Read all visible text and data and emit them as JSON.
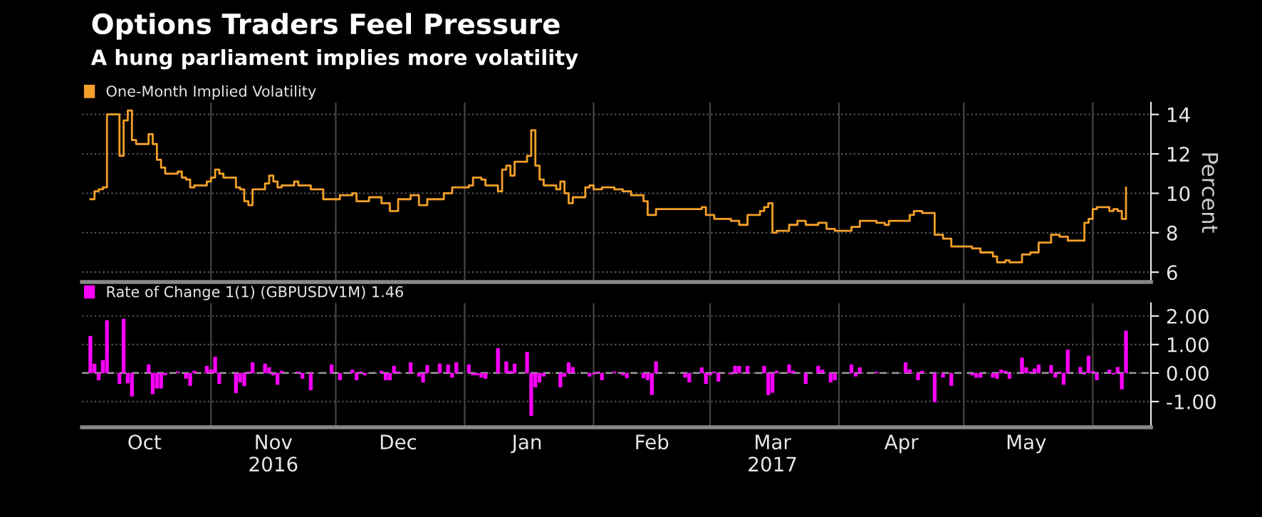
{
  "chart_data": [
    {
      "type": "step",
      "title": "Options Traders Feel Pressure",
      "subtitle": "A hung parliament implies more volatility",
      "ylabel": "Percent",
      "x": [
        "2016-10-03",
        "2016-10-04",
        "2016-10-05",
        "2016-10-06",
        "2016-10-07",
        "2016-10-10",
        "2016-10-11",
        "2016-10-12",
        "2016-10-13",
        "2016-10-14",
        "2016-10-17",
        "2016-10-18",
        "2016-10-19",
        "2016-10-20",
        "2016-10-21",
        "2016-10-24",
        "2016-10-25",
        "2016-10-26",
        "2016-10-27",
        "2016-10-28",
        "2016-10-31",
        "2016-11-01",
        "2016-11-02",
        "2016-11-03",
        "2016-11-04",
        "2016-11-07",
        "2016-11-08",
        "2016-11-09",
        "2016-11-10",
        "2016-11-11",
        "2016-11-14",
        "2016-11-15",
        "2016-11-16",
        "2016-11-17",
        "2016-11-18",
        "2016-11-21",
        "2016-11-22",
        "2016-11-23",
        "2016-11-25",
        "2016-11-28",
        "2016-11-30",
        "2016-12-02",
        "2016-12-05",
        "2016-12-06",
        "2016-12-08",
        "2016-12-09",
        "2016-12-12",
        "2016-12-14",
        "2016-12-16",
        "2016-12-19",
        "2016-12-21",
        "2016-12-23",
        "2016-12-27",
        "2016-12-29",
        "2017-01-02",
        "2017-01-03",
        "2017-01-05",
        "2017-01-06",
        "2017-01-09",
        "2017-01-10",
        "2017-01-11",
        "2017-01-12",
        "2017-01-13",
        "2017-01-16",
        "2017-01-17",
        "2017-01-18",
        "2017-01-19",
        "2017-01-20",
        "2017-01-23",
        "2017-01-24",
        "2017-01-25",
        "2017-01-26",
        "2017-01-27",
        "2017-01-30",
        "2017-01-31",
        "2017-02-01",
        "2017-02-03",
        "2017-02-06",
        "2017-02-08",
        "2017-02-10",
        "2017-02-13",
        "2017-02-14",
        "2017-02-16",
        "2017-02-21",
        "2017-02-24",
        "2017-02-27",
        "2017-02-28",
        "2017-03-02",
        "2017-03-06",
        "2017-03-08",
        "2017-03-10",
        "2017-03-13",
        "2017-03-14",
        "2017-03-15",
        "2017-03-16",
        "2017-03-17",
        "2017-03-20",
        "2017-03-22",
        "2017-03-24",
        "2017-03-27",
        "2017-03-29",
        "2017-03-31",
        "2017-04-04",
        "2017-04-06",
        "2017-04-10",
        "2017-04-12",
        "2017-04-13",
        "2017-04-18",
        "2017-04-19",
        "2017-04-21",
        "2017-04-24",
        "2017-04-26",
        "2017-04-28",
        "2017-05-03",
        "2017-05-05",
        "2017-05-08",
        "2017-05-09",
        "2017-05-11",
        "2017-05-12",
        "2017-05-15",
        "2017-05-17",
        "2017-05-19",
        "2017-05-22",
        "2017-05-24",
        "2017-05-26",
        "2017-05-30",
        "2017-05-31",
        "2017-06-01",
        "2017-06-02",
        "2017-06-05",
        "2017-06-06",
        "2017-06-07",
        "2017-06-08",
        "2017-06-09"
      ],
      "series": [
        {
          "name": "One-Month Implied Volatility",
          "color": "#f5a02a",
          "values": [
            9.7,
            10.1,
            10.2,
            10.3,
            14.0,
            11.9,
            13.7,
            14.2,
            12.7,
            12.5,
            13.0,
            12.5,
            11.7,
            11.3,
            11.0,
            11.1,
            10.8,
            10.7,
            10.3,
            10.4,
            10.6,
            10.8,
            11.2,
            11.0,
            10.8,
            10.3,
            10.2,
            9.6,
            9.4,
            10.2,
            10.5,
            10.9,
            10.6,
            10.3,
            10.4,
            10.6,
            10.4,
            10.4,
            10.2,
            9.7,
            9.7,
            9.9,
            10.0,
            9.6,
            9.6,
            9.8,
            9.5,
            9.1,
            9.7,
            9.9,
            9.4,
            9.7,
            10.0,
            10.3,
            10.4,
            10.8,
            10.7,
            10.4,
            10.1,
            11.2,
            11.4,
            10.9,
            11.6,
            11.9,
            13.2,
            11.4,
            10.7,
            10.4,
            10.2,
            10.6,
            10.0,
            9.5,
            9.8,
            10.3,
            10.4,
            10.2,
            10.3,
            10.2,
            10.1,
            9.9,
            9.6,
            8.9,
            9.2,
            9.2,
            9.2,
            9.3,
            8.9,
            8.7,
            8.6,
            8.4,
            8.9,
            9.1,
            9.3,
            9.5,
            8.0,
            8.1,
            8.4,
            8.6,
            8.4,
            8.5,
            8.2,
            8.1,
            8.3,
            8.6,
            8.5,
            8.4,
            8.6,
            8.9,
            9.1,
            9.0,
            7.9,
            7.7,
            7.3,
            7.2,
            7.0,
            6.8,
            6.5,
            6.6,
            6.5,
            6.9,
            7.0,
            7.5,
            7.9,
            7.8,
            7.6,
            8.5,
            8.7,
            9.2,
            9.3,
            9.1,
            9.2,
            9.1,
            8.7,
            10.3
          ]
        }
      ],
      "xlim": [
        "2016-10-01",
        "2017-06-15"
      ],
      "xticks": [
        {
          "value": "2016-11-01",
          "label": null
        },
        {
          "value": "2016-12-01",
          "label": null
        },
        {
          "value": "2017-01-01",
          "label": null
        },
        {
          "value": "2017-02-01",
          "label": null
        },
        {
          "value": "2017-03-01",
          "label": null
        },
        {
          "value": "2017-04-01",
          "label": null
        },
        {
          "value": "2017-05-01",
          "label": null
        },
        {
          "value": "2017-06-01",
          "label": null
        }
      ],
      "ylim": [
        5.5,
        14.6
      ],
      "yticks": [
        6,
        8,
        10,
        12,
        14
      ],
      "tick_labels": "y",
      "grid": true,
      "legend": "top left",
      "marker": "none",
      "line_style": "solid"
    },
    {
      "type": "bar",
      "x": [
        "2016-10-03",
        "2016-10-04",
        "2016-10-05",
        "2016-10-06",
        "2016-10-07",
        "2016-10-10",
        "2016-10-11",
        "2016-10-12",
        "2016-10-13",
        "2016-10-17",
        "2016-10-18",
        "2016-10-19",
        "2016-10-20",
        "2016-10-21",
        "2016-10-24",
        "2016-10-26",
        "2016-10-27",
        "2016-10-28",
        "2016-10-31",
        "2016-11-01",
        "2016-11-02",
        "2016-11-03",
        "2016-11-07",
        "2016-11-08",
        "2016-11-09",
        "2016-11-10",
        "2016-11-11",
        "2016-11-14",
        "2016-11-15",
        "2016-11-16",
        "2016-11-17",
        "2016-11-18",
        "2016-11-22",
        "2016-11-23",
        "2016-11-25",
        "2016-11-30",
        "2016-12-02",
        "2016-12-05",
        "2016-12-06",
        "2016-12-07",
        "2016-12-08",
        "2016-12-12",
        "2016-12-13",
        "2016-12-14",
        "2016-12-15",
        "2016-12-16",
        "2016-12-19",
        "2016-12-21",
        "2016-12-22",
        "2016-12-23",
        "2016-12-26",
        "2016-12-28",
        "2016-12-29",
        "2016-12-30",
        "2017-01-02",
        "2017-01-03",
        "2017-01-04",
        "2017-01-05",
        "2017-01-06",
        "2017-01-09",
        "2017-01-11",
        "2017-01-12",
        "2017-01-13",
        "2017-01-16",
        "2017-01-17",
        "2017-01-18",
        "2017-01-19",
        "2017-01-20",
        "2017-01-24",
        "2017-01-25",
        "2017-01-26",
        "2017-01-27",
        "2017-01-31",
        "2017-02-01",
        "2017-02-02",
        "2017-02-03",
        "2017-02-06",
        "2017-02-08",
        "2017-02-09",
        "2017-02-13",
        "2017-02-14",
        "2017-02-15",
        "2017-02-16",
        "2017-02-23",
        "2017-02-24",
        "2017-02-27",
        "2017-02-28",
        "2017-03-01",
        "2017-03-02",
        "2017-03-03",
        "2017-03-06",
        "2017-03-07",
        "2017-03-08",
        "2017-03-10",
        "2017-03-14",
        "2017-03-15",
        "2017-03-16",
        "2017-03-17",
        "2017-03-20",
        "2017-03-21",
        "2017-03-24",
        "2017-03-27",
        "2017-03-28",
        "2017-03-30",
        "2017-03-31",
        "2017-04-04",
        "2017-04-05",
        "2017-04-06",
        "2017-04-10",
        "2017-04-17",
        "2017-04-18",
        "2017-04-20",
        "2017-04-21",
        "2017-04-24",
        "2017-04-26",
        "2017-04-28",
        "2017-05-03",
        "2017-05-04",
        "2017-05-05",
        "2017-05-08",
        "2017-05-09",
        "2017-05-10",
        "2017-05-11",
        "2017-05-12",
        "2017-05-15",
        "2017-05-16",
        "2017-05-17",
        "2017-05-18",
        "2017-05-19",
        "2017-05-22",
        "2017-05-23",
        "2017-05-24",
        "2017-05-25",
        "2017-05-26",
        "2017-05-29",
        "2017-05-30",
        "2017-05-31",
        "2017-06-01",
        "2017-06-02",
        "2017-06-05",
        "2017-06-06",
        "2017-06-07",
        "2017-06-08",
        "2017-06-09"
      ],
      "series": [
        {
          "name": "Rate of Change 1(1) (GBPUSDV1M) 1.46",
          "color": "#ff00ff",
          "values": [
            1.3,
            0.33,
            -0.25,
            0.45,
            1.85,
            -0.38,
            1.9,
            -0.36,
            -0.82,
            0.3,
            -0.74,
            -0.54,
            -0.54,
            -0.08,
            0.05,
            -0.2,
            -0.45,
            0.08,
            0.25,
            0.13,
            0.57,
            -0.38,
            -0.7,
            -0.33,
            -0.46,
            0.05,
            0.38,
            0.33,
            0.2,
            -0.08,
            -0.41,
            0.08,
            0.05,
            -0.2,
            -0.6,
            0.3,
            -0.25,
            0.12,
            -0.25,
            0.05,
            -0.08,
            0.08,
            -0.25,
            -0.25,
            0.25,
            0.05,
            0.38,
            -0.12,
            -0.33,
            0.28,
            0.33,
            0.3,
            -0.16,
            0.38,
            0.3,
            -0.08,
            -0.08,
            -0.16,
            -0.2,
            0.87,
            0.41,
            0.08,
            0.33,
            0.74,
            -1.5,
            -0.5,
            -0.33,
            -0.12,
            -0.5,
            -0.13,
            0.38,
            0.21,
            -0.12,
            -0.05,
            0.05,
            -0.25,
            0.05,
            -0.08,
            -0.18,
            -0.18,
            -0.25,
            -0.77,
            0.41,
            -0.16,
            -0.33,
            0.2,
            -0.38,
            -0.08,
            0.05,
            -0.3,
            -0.05,
            0.25,
            0.25,
            0.25,
            0.25,
            -0.77,
            -0.69,
            0.08,
            0.3,
            0.08,
            -0.38,
            0.25,
            0.12,
            -0.33,
            -0.25,
            0.3,
            -0.12,
            0.2,
            0.05,
            0.38,
            0.13,
            -0.25,
            0.08,
            -1.02,
            -0.16,
            -0.45,
            -0.08,
            -0.16,
            -0.16,
            -0.16,
            -0.2,
            0.12,
            0.08,
            -0.2,
            0.54,
            0.2,
            0.05,
            0.16,
            0.3,
            0.28,
            -0.16,
            0.05,
            -0.41,
            0.82,
            0.21,
            -0.05,
            0.61,
            0.08,
            -0.25,
            0.12,
            -0.05,
            0.21,
            -0.57,
            1.48
          ]
        }
      ],
      "xlim": [
        "2016-10-01",
        "2017-06-15"
      ],
      "xticks": [
        {
          "value": "2016-10-16",
          "label": "Oct"
        },
        {
          "value": "2016-11-01",
          "label": null
        },
        {
          "value": "2016-11-16",
          "label": "Nov\n2016"
        },
        {
          "value": "2016-12-01",
          "label": null
        },
        {
          "value": "2016-12-16",
          "label": "Dec"
        },
        {
          "value": "2017-01-01",
          "label": null
        },
        {
          "value": "2017-01-16",
          "label": "Jan"
        },
        {
          "value": "2017-02-01",
          "label": null
        },
        {
          "value": "2017-02-15",
          "label": "Feb"
        },
        {
          "value": "2017-03-01",
          "label": null
        },
        {
          "value": "2017-03-16",
          "label": "Mar\n2017"
        },
        {
          "value": "2017-04-01",
          "label": null
        },
        {
          "value": "2017-04-16",
          "label": "Apr"
        },
        {
          "value": "2017-05-01",
          "label": null
        },
        {
          "value": "2017-05-16",
          "label": "May"
        },
        {
          "value": "2017-06-01",
          "label": null
        }
      ],
      "ylim": [
        -1.9,
        2.45
      ],
      "yticks": [
        {
          "value": 2,
          "label": "2.00"
        },
        {
          "value": 1,
          "label": "1.00"
        },
        {
          "value": 0,
          "label": "0.00"
        },
        {
          "value": -1,
          "label": "-1.00"
        }
      ],
      "ref_lines": [
        {
          "axis": "y",
          "value": 0,
          "color": "#999999",
          "line_style": "dashed"
        }
      ],
      "grid": true,
      "legend": "top left"
    }
  ]
}
